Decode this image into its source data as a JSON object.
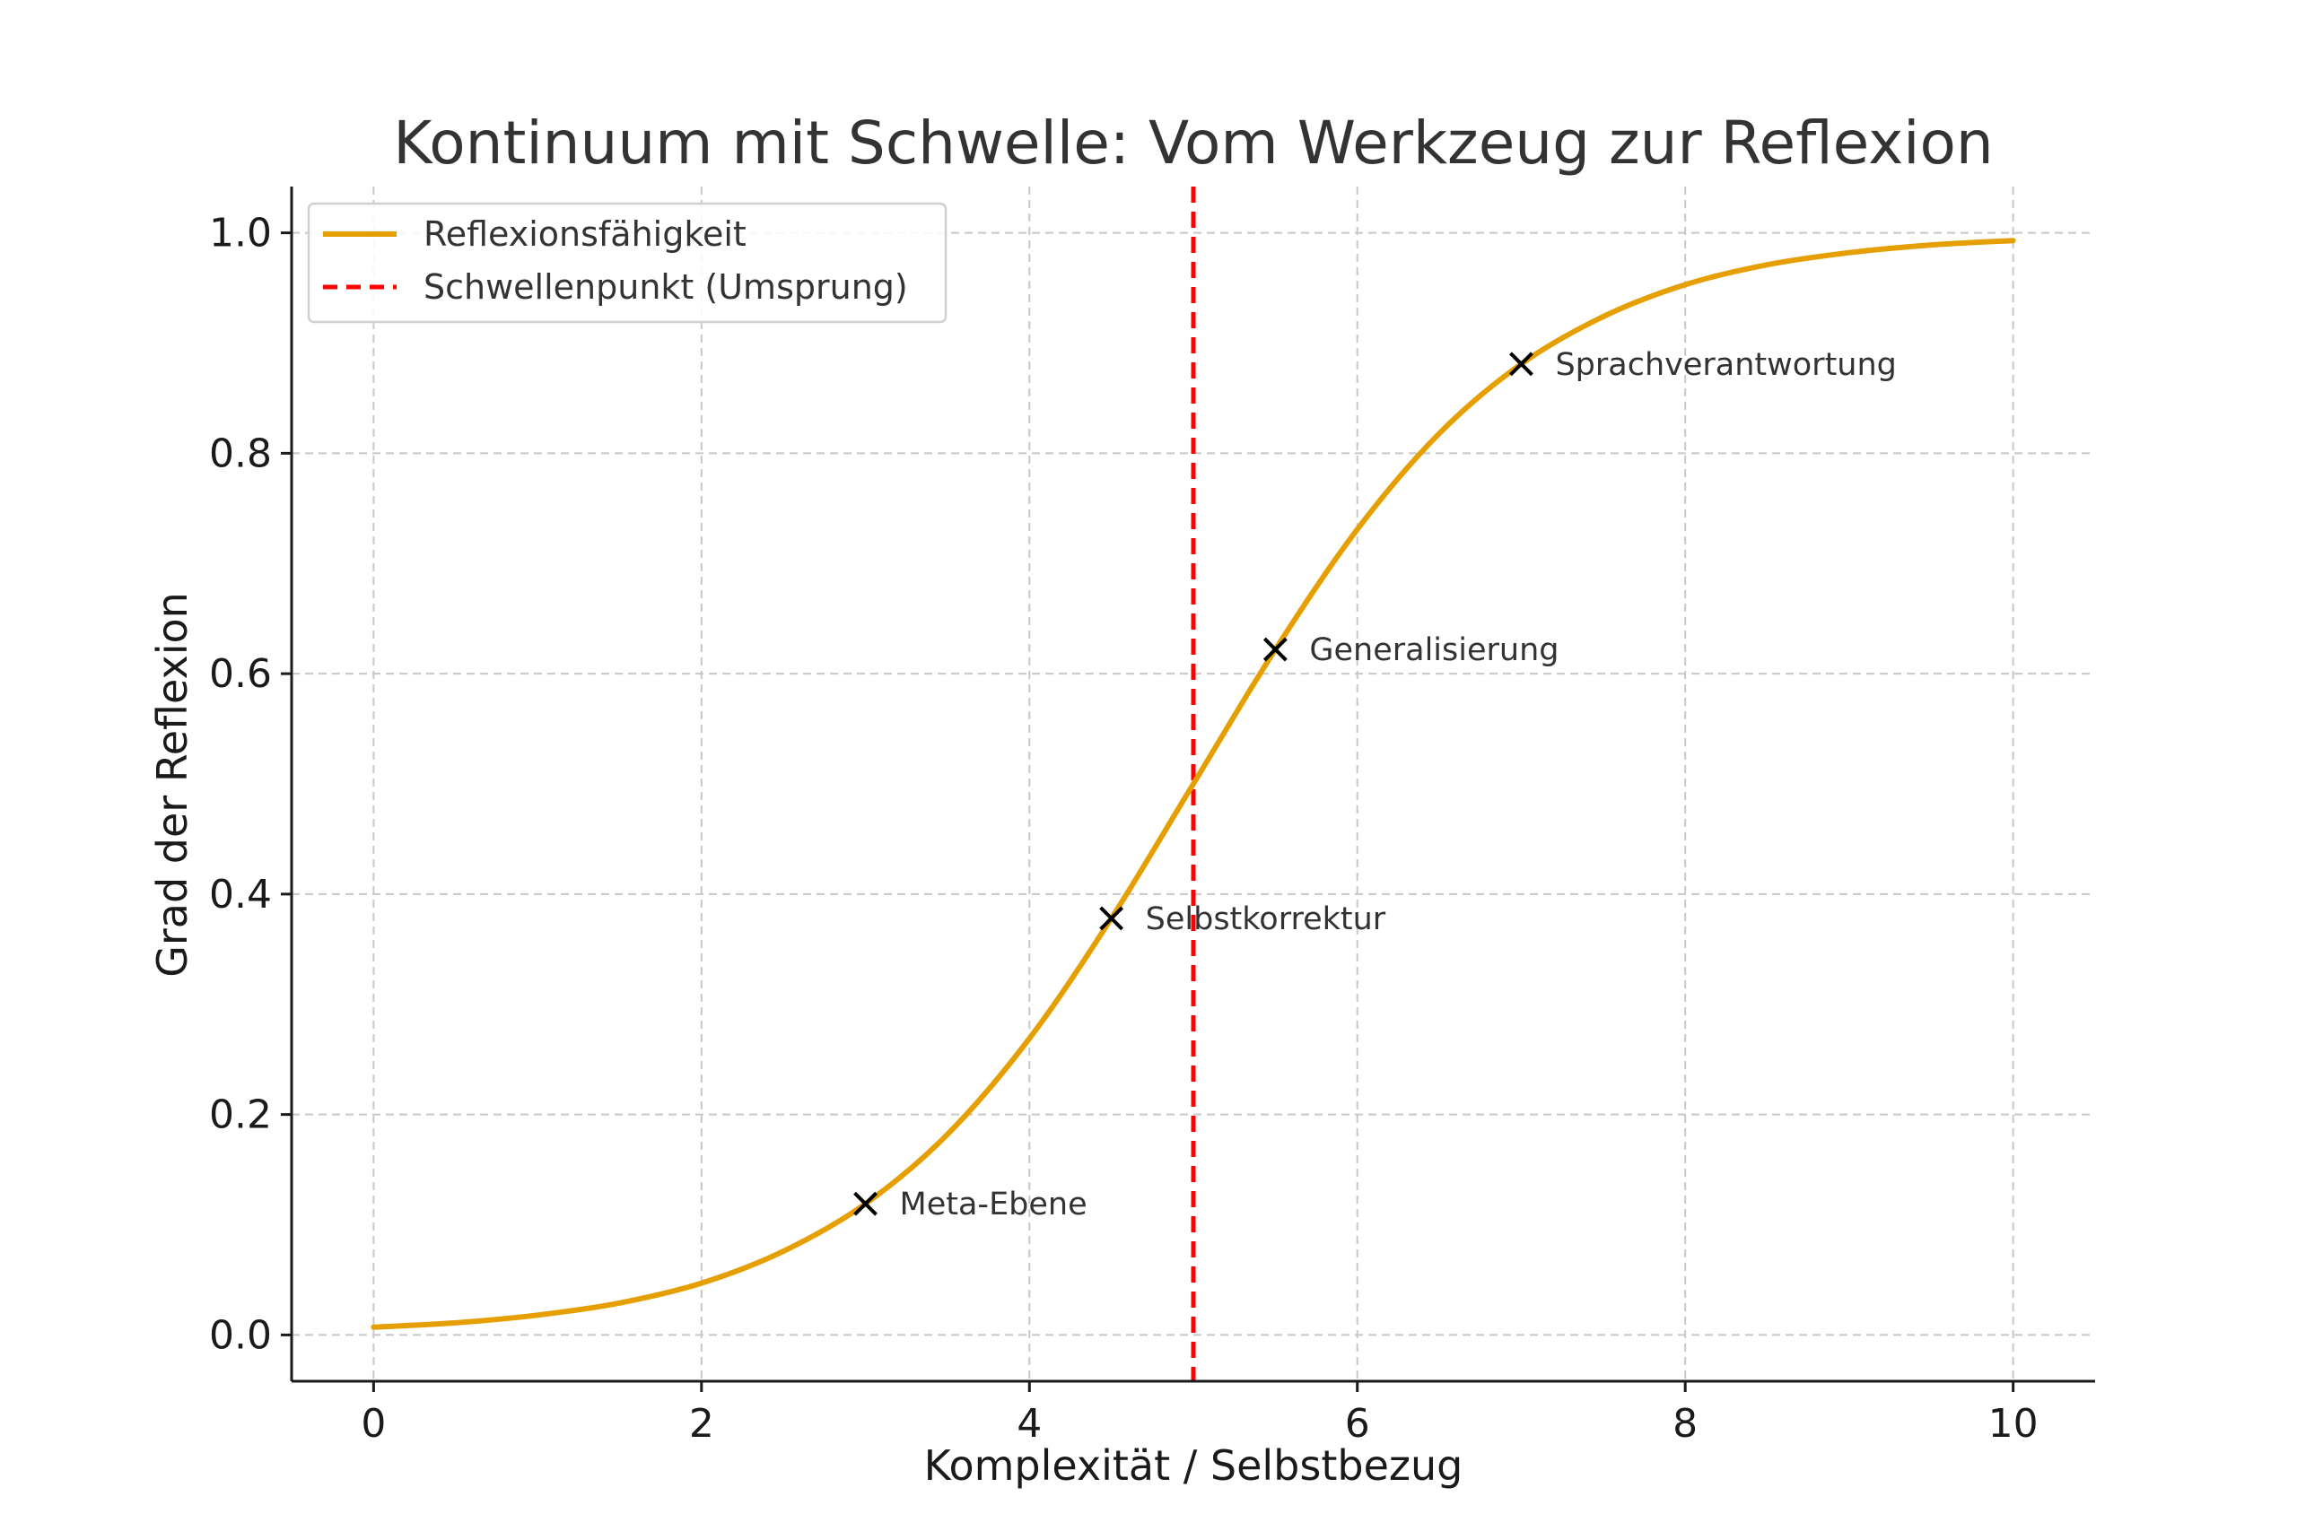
{
  "chart_data": {
    "type": "line",
    "title": "Kontinuum mit Schwelle: Vom Werkzeug zur Reflexion",
    "xlabel": "Komplexität / Selbstbezug",
    "ylabel": "Grad der Reflexion",
    "xlim": [
      -0.5,
      10.5
    ],
    "ylim": [
      -0.042,
      1.042
    ],
    "x_ticks": [
      0,
      2,
      4,
      6,
      8,
      10
    ],
    "x_tick_labels": [
      "0",
      "2",
      "4",
      "6",
      "8",
      "10"
    ],
    "y_ticks": [
      0.0,
      0.2,
      0.4,
      0.6,
      0.8,
      1.0
    ],
    "y_tick_labels": [
      "0.0",
      "0.2",
      "0.4",
      "0.6",
      "0.8",
      "1.0"
    ],
    "grid": true,
    "legend_position": "top-left",
    "series": [
      {
        "name": "Reflexionsfähigkeit",
        "color": "#E69F00",
        "style": "solid",
        "x": [
          0,
          0.5,
          1,
          1.5,
          2,
          2.5,
          3,
          3.5,
          4,
          4.5,
          5,
          5.5,
          6,
          6.5,
          7,
          7.5,
          8,
          8.5,
          9,
          9.5,
          10
        ],
        "y": [
          0.007,
          0.011,
          0.018,
          0.029,
          0.047,
          0.076,
          0.119,
          0.182,
          0.269,
          0.378,
          0.5,
          0.622,
          0.731,
          0.818,
          0.881,
          0.924,
          0.953,
          0.971,
          0.982,
          0.989,
          0.993
        ]
      }
    ],
    "threshold": {
      "name": "Schwellenpunkt (Umsprung)",
      "x": 5,
      "color": "#FF0000",
      "style": "dashed"
    },
    "annotations": [
      {
        "label": "Meta-Ebene",
        "x": 3,
        "y": 0.119
      },
      {
        "label": "Selbstkorrektur",
        "x": 4.5,
        "y": 0.378
      },
      {
        "label": "Generalisierung",
        "x": 5.5,
        "y": 0.622
      },
      {
        "label": "Sprachverantwortung",
        "x": 7,
        "y": 0.881
      }
    ],
    "marker": "x",
    "marker_color": "#000000"
  }
}
